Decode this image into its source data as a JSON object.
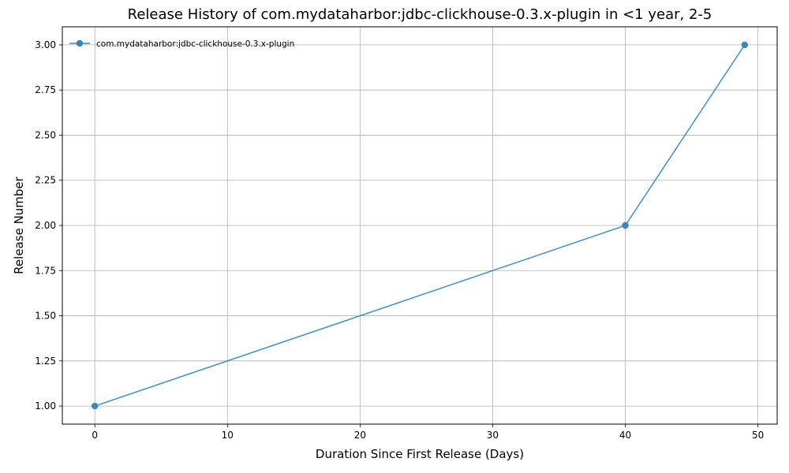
{
  "chart_data": {
    "type": "line",
    "title": "Release History of com.mydataharbor:jdbc-clickhouse-0.3.x-plugin in <1 year, 2-5",
    "xlabel": "Duration Since First Release (Days)",
    "ylabel": "Release Number",
    "xlim": [
      -2.45,
      51.45
    ],
    "ylim": [
      0.9,
      3.1
    ],
    "xticks": [
      0,
      10,
      20,
      30,
      40,
      50
    ],
    "xtick_labels": [
      "0",
      "10",
      "20",
      "30",
      "40",
      "50"
    ],
    "yticks": [
      1.0,
      1.25,
      1.5,
      1.75,
      2.0,
      2.25,
      2.5,
      2.75,
      3.0
    ],
    "ytick_labels": [
      "1.00",
      "1.25",
      "1.50",
      "1.75",
      "2.00",
      "2.25",
      "2.50",
      "2.75",
      "3.00"
    ],
    "grid": true,
    "legend_position": "top-left",
    "series": [
      {
        "name": "com.mydataharbor:jdbc-clickhouse-0.3.x-plugin",
        "color": "#3a87bf",
        "marker": "circle",
        "x": [
          0,
          40,
          49
        ],
        "y": [
          1,
          2,
          3
        ]
      }
    ]
  }
}
